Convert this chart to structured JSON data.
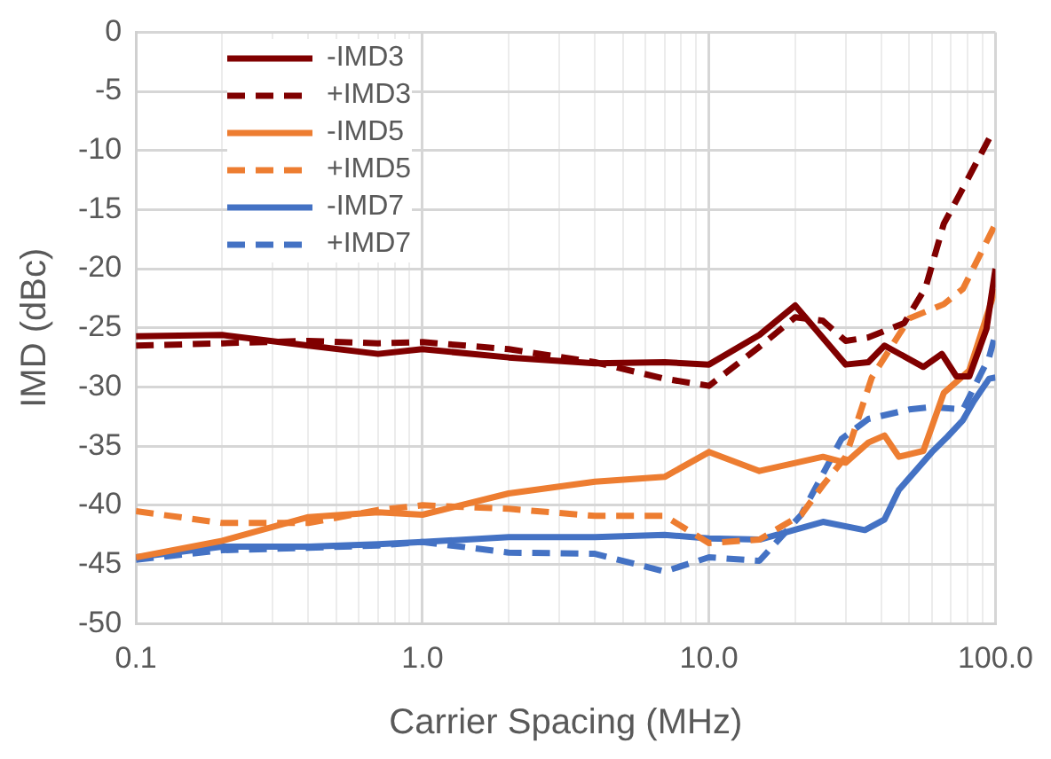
{
  "chart_data": {
    "type": "line",
    "xlabel": "Carrier Spacing (MHz)",
    "ylabel": "IMD (dBc)",
    "log": "x",
    "grid": true,
    "legend": "top left",
    "marker": "none",
    "xlim": [
      0.1,
      100
    ],
    "xticks": [
      {
        "value": 0.1,
        "label": "0.1"
      },
      {
        "value": 0.2,
        "label": null
      },
      {
        "value": 0.3,
        "label": null
      },
      {
        "value": 0.4,
        "label": null
      },
      {
        "value": 0.5,
        "label": null
      },
      {
        "value": 0.6,
        "label": null
      },
      {
        "value": 0.7,
        "label": null
      },
      {
        "value": 0.8,
        "label": null
      },
      {
        "value": 0.9,
        "label": null
      },
      {
        "value": 1,
        "label": "1.0"
      },
      {
        "value": 2,
        "label": null
      },
      {
        "value": 3,
        "label": null
      },
      {
        "value": 4,
        "label": null
      },
      {
        "value": 5,
        "label": null
      },
      {
        "value": 6,
        "label": null
      },
      {
        "value": 7,
        "label": null
      },
      {
        "value": 8,
        "label": null
      },
      {
        "value": 9,
        "label": null
      },
      {
        "value": 10,
        "label": "10.0"
      },
      {
        "value": 20,
        "label": null
      },
      {
        "value": 30,
        "label": null
      },
      {
        "value": 40,
        "label": null
      },
      {
        "value": 50,
        "label": null
      },
      {
        "value": 60,
        "label": null
      },
      {
        "value": 70,
        "label": null
      },
      {
        "value": 80,
        "label": null
      },
      {
        "value": 90,
        "label": null
      },
      {
        "value": 100,
        "label": "100.0"
      }
    ],
    "ylim": [
      -50,
      0
    ],
    "yticks": [
      -50,
      -45,
      -40,
      -35,
      -30,
      -25,
      -20,
      -15,
      -10,
      -5,
      0
    ],
    "series": [
      {
        "name": "-IMD3",
        "color": "#800000",
        "line_style": "solid",
        "x": [
          0.1,
          0.2,
          0.4,
          0.7,
          1,
          2,
          4,
          7,
          10,
          15,
          20,
          30,
          36,
          41,
          56,
          65,
          73,
          81,
          93,
          100
        ],
        "values": [
          -25.7,
          -25.6,
          -26.5,
          -27.2,
          -26.8,
          -27.5,
          -28,
          -27.9,
          -28.1,
          -25.6,
          -23.1,
          -28.1,
          -27.9,
          -26.5,
          -28.3,
          -27.2,
          -29.1,
          -29.1,
          -25.1,
          -20
        ]
      },
      {
        "name": "+IMD3",
        "color": "#800000",
        "line_style": "dashed",
        "x": [
          0.1,
          0.2,
          0.4,
          0.7,
          1,
          2,
          4,
          7,
          10,
          15,
          20,
          25,
          30,
          36,
          48,
          57,
          66,
          75,
          95
        ],
        "values": [
          -26.5,
          -26.3,
          -26.1,
          -26.3,
          -26.2,
          -26.8,
          -27.9,
          -29.3,
          -29.9,
          -26.6,
          -24.1,
          -24.4,
          -26.1,
          -25.8,
          -24.6,
          -21.6,
          -16.2,
          -13.7,
          -9
        ]
      },
      {
        "name": "-IMD5",
        "color": "#ed7d31",
        "line_style": "solid",
        "x": [
          0.1,
          0.2,
          0.4,
          0.7,
          1,
          2,
          4,
          7,
          10,
          15,
          25,
          30,
          36,
          41,
          46,
          56,
          66,
          81,
          100
        ],
        "values": [
          -44.4,
          -43,
          -41,
          -40.6,
          -40.8,
          -39,
          -38,
          -37.6,
          -35.5,
          -37.1,
          -35.9,
          -36.4,
          -34.7,
          -34.1,
          -35.9,
          -35.4,
          -30.5,
          -28.6,
          -21.7
        ]
      },
      {
        "name": "+IMD5",
        "color": "#ed7d31",
        "line_style": "dashed",
        "x": [
          0.1,
          0.2,
          0.4,
          0.7,
          1,
          2,
          4,
          7,
          10,
          15,
          21,
          25,
          30,
          37,
          50,
          66,
          77,
          100
        ],
        "values": [
          -40.5,
          -41.5,
          -41.5,
          -40.4,
          -40,
          -40.3,
          -40.9,
          -40.9,
          -43.2,
          -42.9,
          -40.8,
          -38.3,
          -35.9,
          -29.2,
          -24.2,
          -23,
          -21.7,
          -16.2
        ]
      },
      {
        "name": "-IMD7",
        "color": "#4472c4",
        "line_style": "solid",
        "x": [
          0.1,
          0.2,
          0.4,
          0.7,
          1,
          2,
          4,
          7,
          10,
          15,
          25,
          35,
          41,
          46,
          60,
          68,
          77,
          84,
          95,
          100
        ],
        "values": [
          -44.4,
          -43.5,
          -43.5,
          -43.3,
          -43.1,
          -42.7,
          -42.7,
          -42.5,
          -42.8,
          -42.9,
          -41.4,
          -42.1,
          -41.2,
          -38.7,
          -35.5,
          -34.2,
          -32.8,
          -31.2,
          -29.3,
          -29.2
        ]
      },
      {
        "name": "+IMD7",
        "color": "#4472c4",
        "line_style": "dashed",
        "x": [
          0.1,
          0.2,
          0.4,
          0.7,
          1,
          2,
          4,
          7,
          10,
          15,
          21,
          29,
          36,
          50,
          60,
          77,
          95,
          100
        ],
        "values": [
          -44.6,
          -43.8,
          -43.6,
          -43.4,
          -43.1,
          -44,
          -44.1,
          -45.6,
          -44.4,
          -44.7,
          -40.8,
          -34.4,
          -32.7,
          -31.9,
          -31.7,
          -31.9,
          -27.5,
          -25.5
        ]
      }
    ]
  }
}
